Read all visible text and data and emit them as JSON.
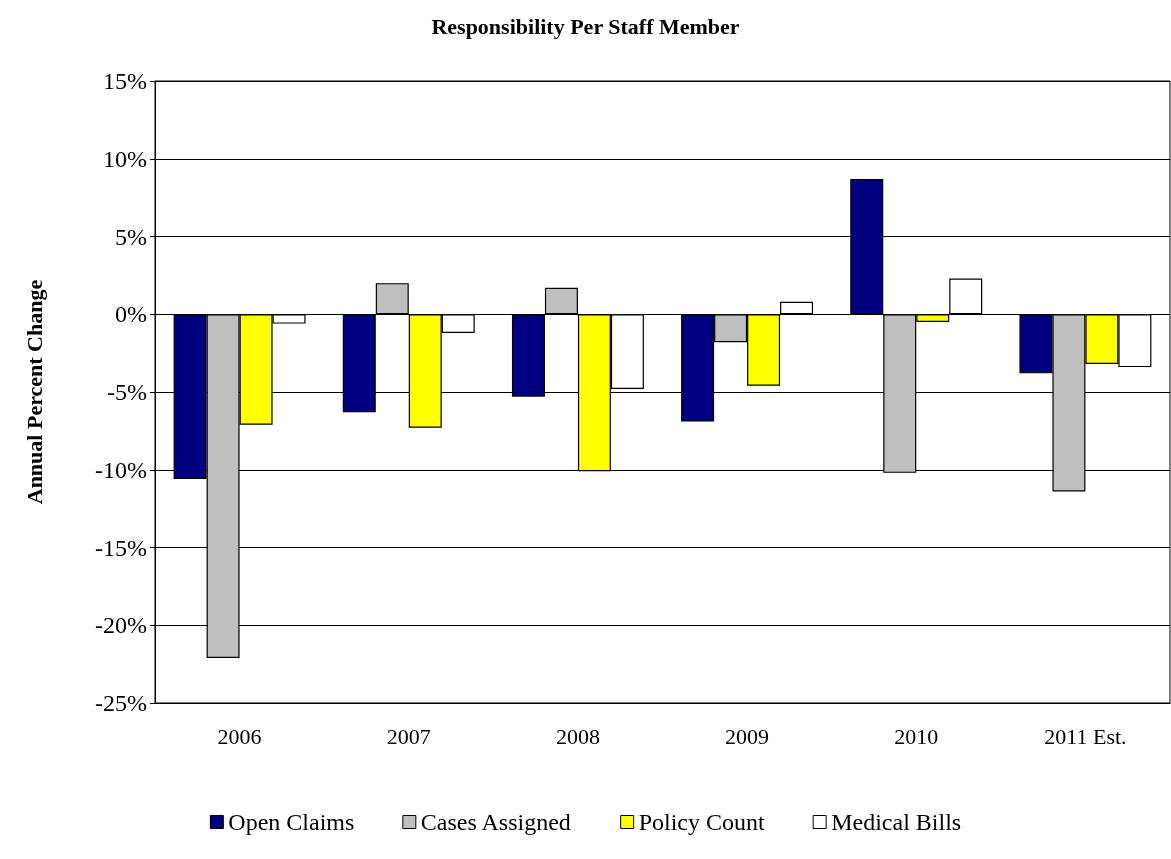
{
  "chart_data": {
    "type": "bar",
    "title": "Responsibility Per Staff Member",
    "ylabel": "Annual Percent Change",
    "categories": [
      "2006",
      "2007",
      "2008",
      "2009",
      "2010",
      "2011 Est."
    ],
    "series": [
      {
        "name": "Open Claims",
        "color": "#000080",
        "values": [
          -10.6,
          -6.3,
          -5.3,
          -6.9,
          8.7,
          -3.8
        ]
      },
      {
        "name": "Cases Assigned",
        "color": "#bfbfbf",
        "values": [
          -22.1,
          2.0,
          1.7,
          -1.8,
          -10.2,
          -11.4
        ]
      },
      {
        "name": "Policy Count",
        "color": "#ffff00",
        "values": [
          -7.1,
          -7.3,
          -10.1,
          -4.6,
          -0.5,
          -3.2
        ]
      },
      {
        "name": "Medical Bills",
        "color": "#ffffff",
        "values": [
          -0.6,
          -1.2,
          -4.8,
          0.8,
          2.3,
          -3.4
        ]
      }
    ],
    "ylim": [
      -25,
      15
    ],
    "yticks": [
      {
        "value": -25,
        "label": "-25%"
      },
      {
        "value": -20,
        "label": "-20%"
      },
      {
        "value": -15,
        "label": "-15%"
      },
      {
        "value": -10,
        "label": "-10%"
      },
      {
        "value": -5,
        "label": "-5%"
      },
      {
        "value": 0,
        "label": "0%"
      },
      {
        "value": 5,
        "label": "5%"
      },
      {
        "value": 10,
        "label": "10%"
      },
      {
        "value": 15,
        "label": "15%"
      }
    ],
    "grid": "y",
    "legend": "bottom"
  }
}
